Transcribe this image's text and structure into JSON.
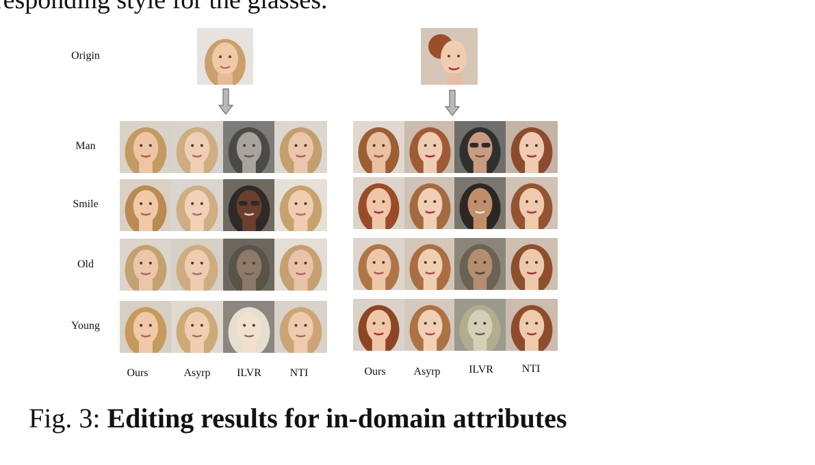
{
  "top_text": "responding style for the glasses.",
  "rows": {
    "origin": "Origin",
    "man": "Man",
    "smile": "Smile",
    "old": "Old",
    "young": "Young"
  },
  "columns_left": [
    "Ours",
    "Asyrp",
    "ILVR",
    "NTI"
  ],
  "columns_right": [
    "Ours",
    "Asyrp",
    "ILVR",
    "NTI"
  ],
  "caption": {
    "prefix": "Fig. 3: ",
    "title": "Editing results for in-domain attributes"
  },
  "colors": {
    "arrow_fill": "#b9b9b9",
    "arrow_stroke": "#6f6f6f"
  }
}
